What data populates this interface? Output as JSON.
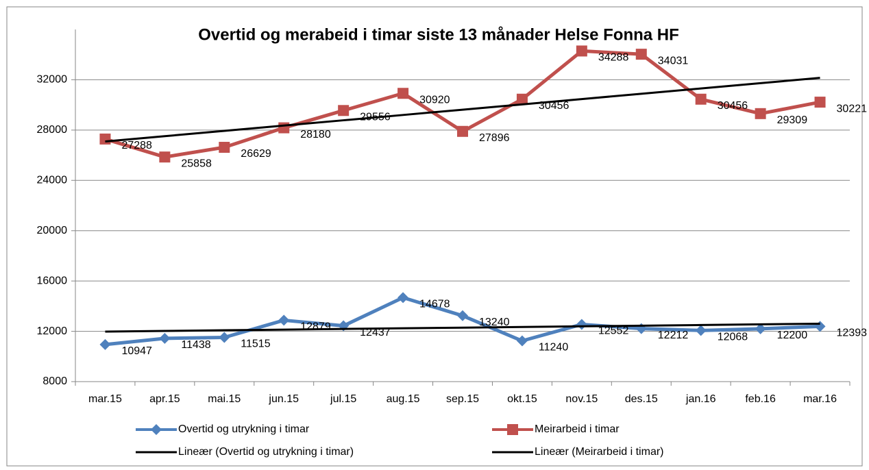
{
  "chart_data": {
    "type": "line",
    "title": "Overtid og merabeid i timar siste 13 månader Helse Fonna HF",
    "categories": [
      "mar.15",
      "apr.15",
      "mai.15",
      "jun.15",
      "jul.15",
      "aug.15",
      "sep.15",
      "okt.15",
      "nov.15",
      "des.15",
      "jan.16",
      "feb.16",
      "mar.16"
    ],
    "series": [
      {
        "name": "Overtid og utrykning i timar",
        "color": "#4f81bd",
        "marker": "diamond",
        "data_labels": true,
        "values": [
          10947,
          11438,
          11515,
          12879,
          12437,
          14678,
          13240,
          11240,
          12552,
          12212,
          12068,
          12200,
          12393
        ]
      },
      {
        "name": "Meirarbeid i timar",
        "color": "#c0504d",
        "marker": "square",
        "data_labels": true,
        "values": [
          27288,
          25858,
          26629,
          28180,
          29556,
          30920,
          27896,
          30456,
          34288,
          34031,
          30456,
          29309,
          30221
        ]
      },
      {
        "name": "Lineær (Overtid og utrykning i timar)",
        "color": "#000000",
        "marker": "none",
        "data_labels": false,
        "values": [
          11979,
          12031,
          12083,
          12135,
          12187,
          12240,
          12292,
          12344,
          12396,
          12448,
          12501,
          12553,
          12605
        ]
      },
      {
        "name": "Lineær (Meirarbeid i timar)",
        "color": "#000000",
        "marker": "none",
        "data_labels": false,
        "values": [
          27093,
          27515,
          27936,
          28358,
          28779,
          29201,
          29622,
          30044,
          30465,
          30887,
          31308,
          31730,
          32151
        ]
      }
    ],
    "ylim": [
      8000,
      36000
    ],
    "yticks": [
      8000,
      12000,
      16000,
      20000,
      24000,
      28000,
      32000
    ],
    "grid": true,
    "legend": "bottom"
  }
}
